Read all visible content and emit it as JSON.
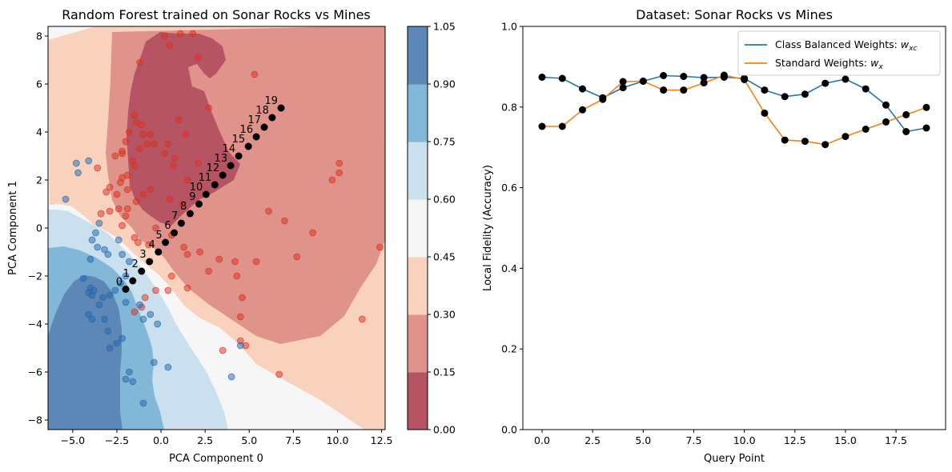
{
  "chart_data": [
    {
      "type": "scatter",
      "title": "Random Forest trained on Sonar Rocks vs Mines",
      "xlabel": "PCA Component 0",
      "ylabel": "PCA Component 1",
      "xlim": [
        -6.4,
        12.7
      ],
      "ylim": [
        -8.4,
        8.4
      ],
      "xticks": [
        -5.0,
        -2.5,
        0.0,
        2.5,
        5.0,
        7.5,
        10.0,
        12.5
      ],
      "yticks": [
        -8,
        -6,
        -4,
        -2,
        0,
        2,
        4,
        6,
        8
      ],
      "colorbar": {
        "levels": [
          0.0,
          0.15,
          0.3,
          0.45,
          0.6,
          0.75,
          0.9,
          1.05
        ],
        "tick_labels": [
          "0.00",
          "0.15",
          "0.30",
          "0.45",
          "0.60",
          "0.75",
          "0.90",
          "1.05"
        ],
        "colors": [
          "#b65463",
          "#e0938a",
          "#f9d2be",
          "#f6f6f6",
          "#cae0ee",
          "#82b7d7",
          "#5d87b6"
        ]
      },
      "query_points": {
        "x": [
          -2.0,
          -1.6,
          -1.1,
          -0.65,
          -0.15,
          0.25,
          0.75,
          1.15,
          1.65,
          2.15,
          2.55,
          3.05,
          3.5,
          3.95,
          4.4,
          4.95,
          5.4,
          5.85,
          6.3,
          6.8
        ],
        "y": [
          -2.55,
          -2.2,
          -1.8,
          -1.4,
          -1.0,
          -0.6,
          -0.2,
          0.2,
          0.6,
          1.0,
          1.4,
          1.8,
          2.2,
          2.6,
          3.0,
          3.4,
          3.8,
          4.2,
          4.6,
          5.0
        ],
        "labels": [
          "0",
          "1",
          "2",
          "3",
          "4",
          "5",
          "6",
          "7",
          "8",
          "9",
          "10",
          "11",
          "12",
          "13",
          "14",
          "15",
          "16",
          "17",
          "18",
          "19"
        ],
        "color": "#000000"
      },
      "series": [
        {
          "class": "mine",
          "color": "#d7301f",
          "points": [
            [
              -1.2,
              6.9
            ],
            [
              0.2,
              8.0
            ],
            [
              1.1,
              8.1
            ],
            [
              1.8,
              8.1
            ],
            [
              0.5,
              7.6
            ],
            [
              2.1,
              7.1
            ],
            [
              5.3,
              6.4
            ],
            [
              -1.5,
              4.7
            ],
            [
              -1.4,
              4.4
            ],
            [
              -1.1,
              4.3
            ],
            [
              -1.0,
              3.9
            ],
            [
              -0.8,
              3.5
            ],
            [
              -0.6,
              3.9
            ],
            [
              -1.8,
              4.0
            ],
            [
              -2.0,
              3.6
            ],
            [
              -2.2,
              3.2
            ],
            [
              -2.6,
              3.0
            ],
            [
              -1.2,
              3.3
            ],
            [
              -0.4,
              3.5
            ],
            [
              0.4,
              3.5
            ],
            [
              0.2,
              3.1
            ],
            [
              1.0,
              4.5
            ],
            [
              1.4,
              3.9
            ],
            [
              0.8,
              2.9
            ],
            [
              2.7,
              5.0
            ],
            [
              0.7,
              2.6
            ],
            [
              1.5,
              2.0
            ],
            [
              2.1,
              2.7
            ],
            [
              -2.2,
              3.1
            ],
            [
              -1.6,
              2.8
            ],
            [
              -1.5,
              2.6
            ],
            [
              -1.9,
              2.2
            ],
            [
              -2.2,
              2.1
            ],
            [
              -2.3,
              1.9
            ],
            [
              -2.5,
              1.4
            ],
            [
              -2.9,
              1.7
            ],
            [
              -3.1,
              1.5
            ],
            [
              -3.6,
              2.5
            ],
            [
              -1.9,
              1.6
            ],
            [
              -1.0,
              1.4
            ],
            [
              -0.6,
              1.6
            ],
            [
              0.5,
              1.2
            ],
            [
              1.2,
              1.0
            ],
            [
              -1.4,
              1.1
            ],
            [
              -1.9,
              0.8
            ],
            [
              -2.0,
              0.5
            ],
            [
              -2.4,
              0.8
            ],
            [
              -2.9,
              0.7
            ],
            [
              -3.4,
              0.6
            ],
            [
              -2.2,
              0.1
            ],
            [
              -1.5,
              -0.4
            ],
            [
              -1.3,
              -0.6
            ],
            [
              -0.7,
              -0.7
            ],
            [
              -0.3,
              0.0
            ],
            [
              0.6,
              -0.3
            ],
            [
              1.3,
              -0.8
            ],
            [
              1.5,
              -1.1
            ],
            [
              2.2,
              -1.0
            ],
            [
              3.3,
              -1.3
            ],
            [
              4.2,
              -1.4
            ],
            [
              5.4,
              -1.4
            ],
            [
              6.1,
              0.7
            ],
            [
              7.0,
              0.3
            ],
            [
              8.6,
              -0.2
            ],
            [
              9.7,
              2.0
            ],
            [
              10.1,
              2.3
            ],
            [
              10.1,
              2.7
            ],
            [
              12.4,
              -0.8
            ],
            [
              7.7,
              -1.2
            ],
            [
              4.3,
              -2.0
            ],
            [
              2.7,
              -1.8
            ],
            [
              0.6,
              -2.0
            ],
            [
              0.4,
              -2.6
            ],
            [
              -0.3,
              -2.6
            ],
            [
              1.5,
              -2.5
            ],
            [
              -0.9,
              -2.9
            ],
            [
              -1.1,
              -3.3
            ],
            [
              4.6,
              -2.9
            ],
            [
              4.5,
              -3.7
            ],
            [
              -1.5,
              -3.5
            ],
            [
              3.5,
              -5.1
            ],
            [
              4.5,
              -4.7
            ],
            [
              4.8,
              -4.9
            ],
            [
              6.7,
              -6.1
            ],
            [
              11.4,
              -3.8
            ]
          ]
        },
        {
          "class": "rock",
          "color": "#2166ac",
          "points": [
            [
              -4.8,
              2.7
            ],
            [
              -4.7,
              2.3
            ],
            [
              -4.1,
              2.8
            ],
            [
              -5.4,
              1.2
            ],
            [
              -3.5,
              0.2
            ],
            [
              -3.7,
              -0.2
            ],
            [
              -3.9,
              -0.5
            ],
            [
              -3.6,
              -0.8
            ],
            [
              -3.2,
              -0.9
            ],
            [
              -3.0,
              -1.1
            ],
            [
              -4.0,
              -1.3
            ],
            [
              -2.4,
              -0.5
            ],
            [
              -2.2,
              -1.1
            ],
            [
              -1.8,
              -1.4
            ],
            [
              -2.0,
              -2.0
            ],
            [
              -2.3,
              -2.3
            ],
            [
              -2.6,
              -2.6
            ],
            [
              -2.9,
              -2.8
            ],
            [
              -3.3,
              -2.9
            ],
            [
              -3.5,
              -3.2
            ],
            [
              -2.0,
              -3.1
            ],
            [
              -1.2,
              -3.2
            ],
            [
              -1.0,
              -3.8
            ],
            [
              -0.6,
              -3.6
            ],
            [
              -0.2,
              -4.0
            ],
            [
              -4.4,
              -2.1
            ],
            [
              -4.0,
              -2.5
            ],
            [
              -3.8,
              -2.6
            ],
            [
              -4.1,
              -2.7
            ],
            [
              -3.9,
              -2.8
            ],
            [
              -4.1,
              -3.6
            ],
            [
              -3.9,
              -3.8
            ],
            [
              -3.2,
              -3.8
            ],
            [
              -3.0,
              -4.3
            ],
            [
              -2.5,
              -4.8
            ],
            [
              -2.2,
              -4.6
            ],
            [
              -2.9,
              -5.0
            ],
            [
              -2.0,
              -6.3
            ],
            [
              -1.6,
              -6.4
            ],
            [
              -1.8,
              -6.0
            ],
            [
              -1.0,
              -7.3
            ],
            [
              -0.4,
              -5.6
            ],
            [
              0.4,
              -5.8
            ],
            [
              4.0,
              -6.2
            ],
            [
              4.5,
              -4.9
            ]
          ]
        }
      ]
    },
    {
      "type": "line",
      "title": "Dataset: Sonar Rocks vs Mines",
      "xlabel": "Query Point",
      "ylabel": "Local Fidelity (Accuracy)",
      "xlim": [
        -0.95,
        19.95
      ],
      "ylim": [
        0.0,
        1.0
      ],
      "xticks": [
        0.0,
        2.5,
        5.0,
        7.5,
        10.0,
        12.5,
        15.0,
        17.5
      ],
      "yticks": [
        0.0,
        0.2,
        0.4,
        0.6,
        0.8,
        1.0
      ],
      "x": [
        0,
        1,
        2,
        3,
        4,
        5,
        6,
        7,
        8,
        9,
        10,
        11,
        12,
        13,
        14,
        15,
        16,
        17,
        18,
        19
      ],
      "legend_position": "top-right",
      "series": [
        {
          "name": "Class Balanced Weights: ",
          "subscript": "xc",
          "color": "#1f77b4",
          "values": [
            0.874,
            0.871,
            0.845,
            0.823,
            0.848,
            0.864,
            0.878,
            0.876,
            0.873,
            0.874,
            0.871,
            0.842,
            0.826,
            0.832,
            0.859,
            0.869,
            0.845,
            0.805,
            0.739,
            0.748
          ]
        },
        {
          "name": "Standard Weights: ",
          "subscript": "x",
          "color": "#ff7f0e",
          "values": [
            0.752,
            0.752,
            0.793,
            0.819,
            0.863,
            0.864,
            0.842,
            0.842,
            0.86,
            0.879,
            0.868,
            0.785,
            0.718,
            0.715,
            0.707,
            0.727,
            0.745,
            0.763,
            0.781,
            0.799
          ]
        }
      ],
      "marker_color": "#000000"
    }
  ]
}
